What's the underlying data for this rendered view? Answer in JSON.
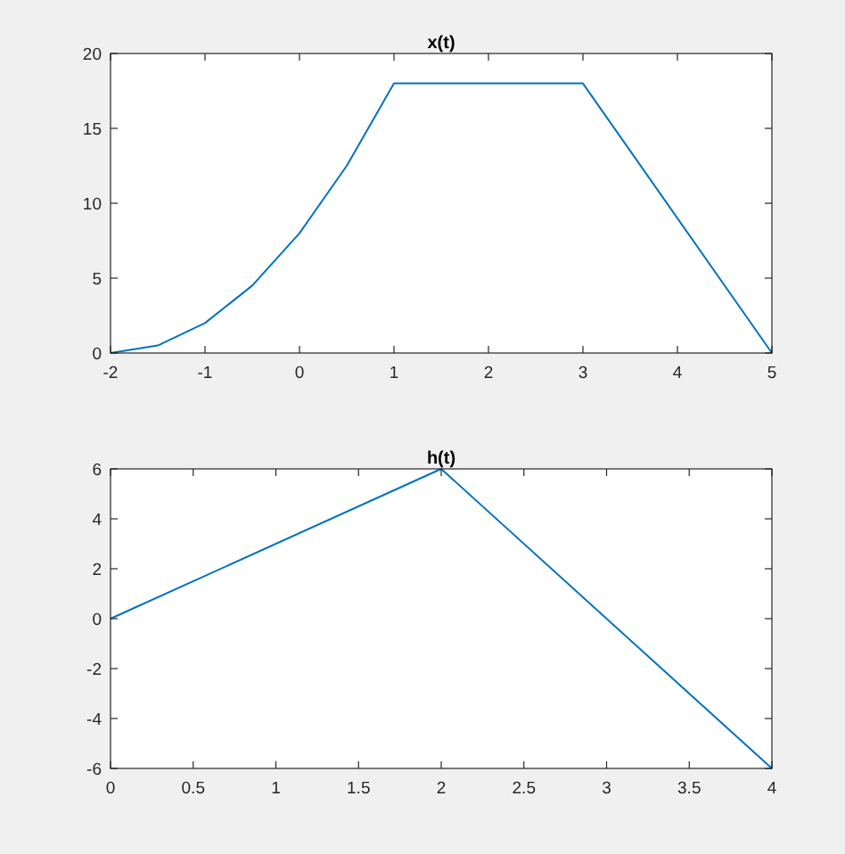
{
  "chart_data": [
    {
      "type": "line",
      "title": "x(t)",
      "x": [
        -2,
        -1.5,
        -1,
        -0.5,
        0,
        0.5,
        1,
        3,
        5
      ],
      "series": [
        {
          "color": "#0072bd",
          "values": [
            0,
            0.5,
            2,
            4.5,
            8,
            12.5,
            18,
            18,
            0
          ]
        }
      ],
      "xlim": [
        -2,
        5
      ],
      "ylim": [
        0,
        20
      ],
      "xticks": [
        -2,
        -1,
        0,
        1,
        2,
        3,
        4,
        5
      ],
      "yticks": [
        0,
        5,
        10,
        15,
        20
      ]
    },
    {
      "type": "line",
      "title": "h(t)",
      "x": [
        0,
        2,
        4
      ],
      "series": [
        {
          "color": "#0072bd",
          "values": [
            0,
            6,
            -6
          ]
        }
      ],
      "xlim": [
        0,
        4
      ],
      "ylim": [
        -6,
        6
      ],
      "xticks": [
        0,
        0.5,
        1,
        1.5,
        2,
        2.5,
        3,
        3.5,
        4
      ],
      "yticks": [
        -6,
        -4,
        -2,
        0,
        2,
        4,
        6
      ]
    }
  ]
}
